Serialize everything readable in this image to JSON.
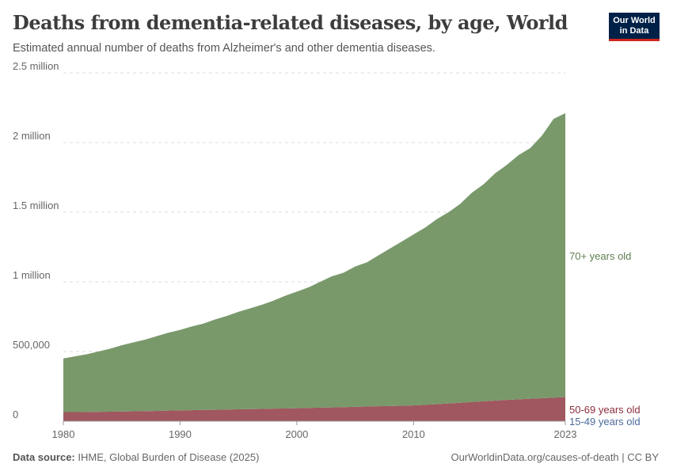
{
  "header": {
    "title": "Deaths from dementia-related diseases, by age, World",
    "subtitle": "Estimated annual number of deaths from Alzheimer's and other dementia diseases.",
    "logo": "Our World in Data"
  },
  "footer": {
    "source_label": "Data source:",
    "source": "IHME, Global Burden of Disease (2025)",
    "link": "OurWorldinData.org/causes-of-death | CC BY"
  },
  "chart_data": {
    "type": "area",
    "stacked": true,
    "title": "Deaths from dementia-related diseases, by age, World",
    "x": [
      1980,
      1981,
      1982,
      1983,
      1984,
      1985,
      1986,
      1987,
      1988,
      1989,
      1990,
      1991,
      1992,
      1993,
      1994,
      1995,
      1996,
      1997,
      1998,
      1999,
      2000,
      2001,
      2002,
      2003,
      2004,
      2005,
      2006,
      2007,
      2008,
      2009,
      2010,
      2011,
      2012,
      2013,
      2014,
      2015,
      2016,
      2017,
      2018,
      2019,
      2020,
      2021,
      2022,
      2023
    ],
    "xticks": [
      "1980",
      "1990",
      "2000",
      "2010",
      "2023"
    ],
    "yticks": [
      {
        "v": 0,
        "label": "0"
      },
      {
        "v": 500000,
        "label": "500,000"
      },
      {
        "v": 1000000,
        "label": "1 million"
      },
      {
        "v": 1500000,
        "label": "1.5 million"
      },
      {
        "v": 2000000,
        "label": "2 million"
      },
      {
        "v": 2500000,
        "label": "2.5 million"
      }
    ],
    "ylim": [
      0,
      2500000
    ],
    "grid": "horizontal dashed",
    "legend": "right-end labels",
    "series": [
      {
        "name": "15-49 years old",
        "color": "#4c6a9c",
        "label_color": "#4c6a9c",
        "values": [
          3000,
          3000,
          3000,
          3000,
          3000,
          3000,
          3000,
          3000,
          3000,
          3000,
          3000,
          3000,
          3000,
          3000,
          3000,
          3000,
          3000,
          3000,
          3000,
          3000,
          3000,
          3000,
          3000,
          3000,
          3000,
          3000,
          3000,
          3000,
          3000,
          3000,
          3000,
          3000,
          3000,
          3000,
          3000,
          3000,
          3000,
          3000,
          3000,
          3000,
          3000,
          3000,
          3000,
          3000
        ]
      },
      {
        "name": "50-69 years old",
        "color": "#a0575f",
        "label_color": "#8c2e3c",
        "values": [
          62000,
          62000,
          63000,
          64000,
          65000,
          66000,
          68000,
          69000,
          71000,
          73000,
          75000,
          76000,
          78000,
          79000,
          81000,
          82000,
          84000,
          85000,
          87000,
          88000,
          90000,
          92000,
          94000,
          96000,
          98000,
          100000,
          102000,
          104000,
          106000,
          108000,
          110000,
          114000,
          119000,
          124000,
          129000,
          135000,
          140000,
          145000,
          150000,
          154000,
          158000,
          162000,
          166000,
          170000
        ]
      },
      {
        "name": "70+ years old",
        "color": "#79996b",
        "label_color": "#5f7f50",
        "values": [
          385000,
          400000,
          414000,
          433000,
          452000,
          476000,
          494000,
          513000,
          536000,
          559000,
          577000,
          601000,
          619000,
          648000,
          671000,
          700000,
          723000,
          747000,
          775000,
          809000,
          837000,
          865000,
          903000,
          941000,
          964000,
          1007000,
          1035000,
          1083000,
          1131000,
          1179000,
          1227000,
          1273000,
          1328000,
          1373000,
          1428000,
          1502000,
          1557000,
          1632000,
          1687000,
          1753000,
          1799000,
          1885000,
          2001000,
          2037000
        ]
      }
    ]
  }
}
